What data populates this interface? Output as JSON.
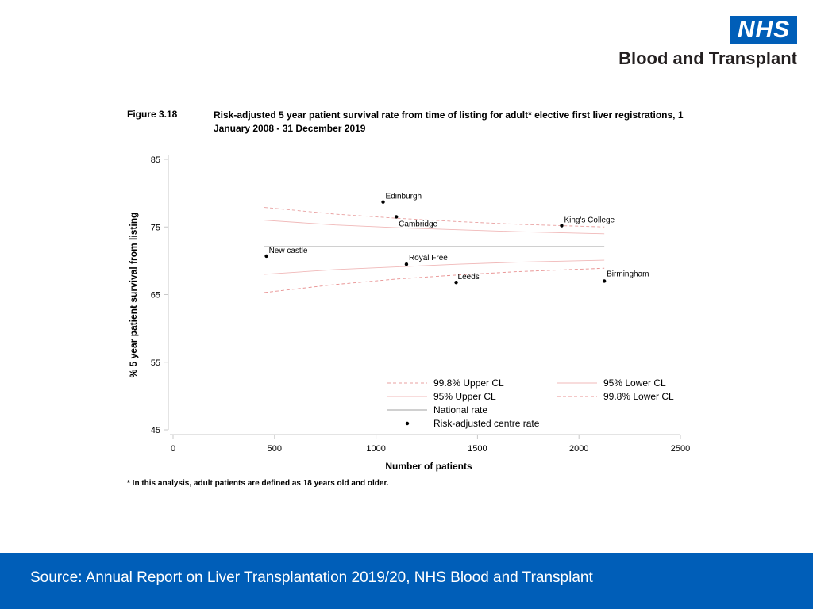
{
  "logo": {
    "badge": "NHS",
    "org": "Blood and Transplant"
  },
  "figure": {
    "label": "Figure 3.18",
    "title": "Risk-adjusted 5 year patient survival rate from time of listing for adult* elective first liver registrations, 1 January 2008 - 31 December 2019"
  },
  "footnote": "* In this analysis, adult patients are defined as 18 years old and older.",
  "source": "Source: Annual Report on Liver Transplantation 2019/20, NHS Blood and Transplant",
  "chart_data": {
    "type": "scatter",
    "xlabel": "Number of patients",
    "ylabel": "% 5 year patient survival from listing",
    "xlim": [
      0,
      2500
    ],
    "ylim": [
      45,
      85
    ],
    "x_ticks": [
      0,
      500,
      1000,
      1500,
      2000,
      2500
    ],
    "y_ticks": [
      45,
      55,
      65,
      75,
      85
    ],
    "grid": false,
    "legend_placement": "bottom-right",
    "national_rate": 72.1,
    "points": [
      {
        "label": "Edinburgh",
        "x": 1035,
        "y": 78.7
      },
      {
        "label": "Cambridge",
        "x": 1100,
        "y": 76.5
      },
      {
        "label": "King's College",
        "x": 1915,
        "y": 75.2
      },
      {
        "label": "New castle",
        "x": 460,
        "y": 70.7
      },
      {
        "label": "Royal Free",
        "x": 1150,
        "y": 69.5
      },
      {
        "label": "Leeds",
        "x": 1395,
        "y": 66.8
      },
      {
        "label": "Birmingham",
        "x": 2125,
        "y": 67.0
      }
    ],
    "series": [
      {
        "name": "99.8% Upper CL",
        "color": "#e8a0a0",
        "dash": "4,3",
        "x": [
          450,
          800,
          1100,
          1400,
          1700,
          2125
        ],
        "y": [
          77.9,
          76.9,
          76.3,
          75.8,
          75.4,
          75.0
        ]
      },
      {
        "name": "95% Upper CL",
        "color": "#f0b8b8",
        "dash": "",
        "x": [
          450,
          800,
          1100,
          1400,
          1700,
          2125
        ],
        "y": [
          76.0,
          75.3,
          74.9,
          74.6,
          74.3,
          74.0
        ]
      },
      {
        "name": "National rate",
        "color": "#a0a0a0",
        "dash": "",
        "x": [
          450,
          2125
        ],
        "y": [
          72.1,
          72.1
        ]
      },
      {
        "name": "95% Lower CL",
        "color": "#f0b8b8",
        "dash": "",
        "x": [
          450,
          800,
          1100,
          1400,
          1700,
          2125
        ],
        "y": [
          68.0,
          68.7,
          69.1,
          69.5,
          69.8,
          70.1
        ]
      },
      {
        "name": "99.8% Lower CL",
        "color": "#e89090",
        "dash": "4,3",
        "x": [
          450,
          800,
          1100,
          1400,
          1700,
          2125
        ],
        "y": [
          65.3,
          66.5,
          67.3,
          67.9,
          68.4,
          68.9
        ]
      }
    ],
    "legend": [
      {
        "name": "99.8% Upper CL",
        "kind": "line",
        "color": "#e8a0a0",
        "dash": "4,3",
        "col": 0,
        "row": 0
      },
      {
        "name": "95% Upper CL",
        "kind": "line",
        "color": "#f0b8b8",
        "dash": "",
        "col": 0,
        "row": 1
      },
      {
        "name": "National rate",
        "kind": "line",
        "color": "#a0a0a0",
        "dash": "",
        "col": 0,
        "row": 2
      },
      {
        "name": "Risk-adjusted centre rate",
        "kind": "dot",
        "color": "#000000",
        "dash": "",
        "col": 0,
        "row": 3
      },
      {
        "name": "95% Lower CL",
        "kind": "line",
        "color": "#f0b8b8",
        "dash": "",
        "col": 1,
        "row": 0
      },
      {
        "name": "99.8% Lower CL",
        "kind": "line",
        "color": "#e89090",
        "dash": "4,3",
        "col": 1,
        "row": 1
      }
    ]
  }
}
